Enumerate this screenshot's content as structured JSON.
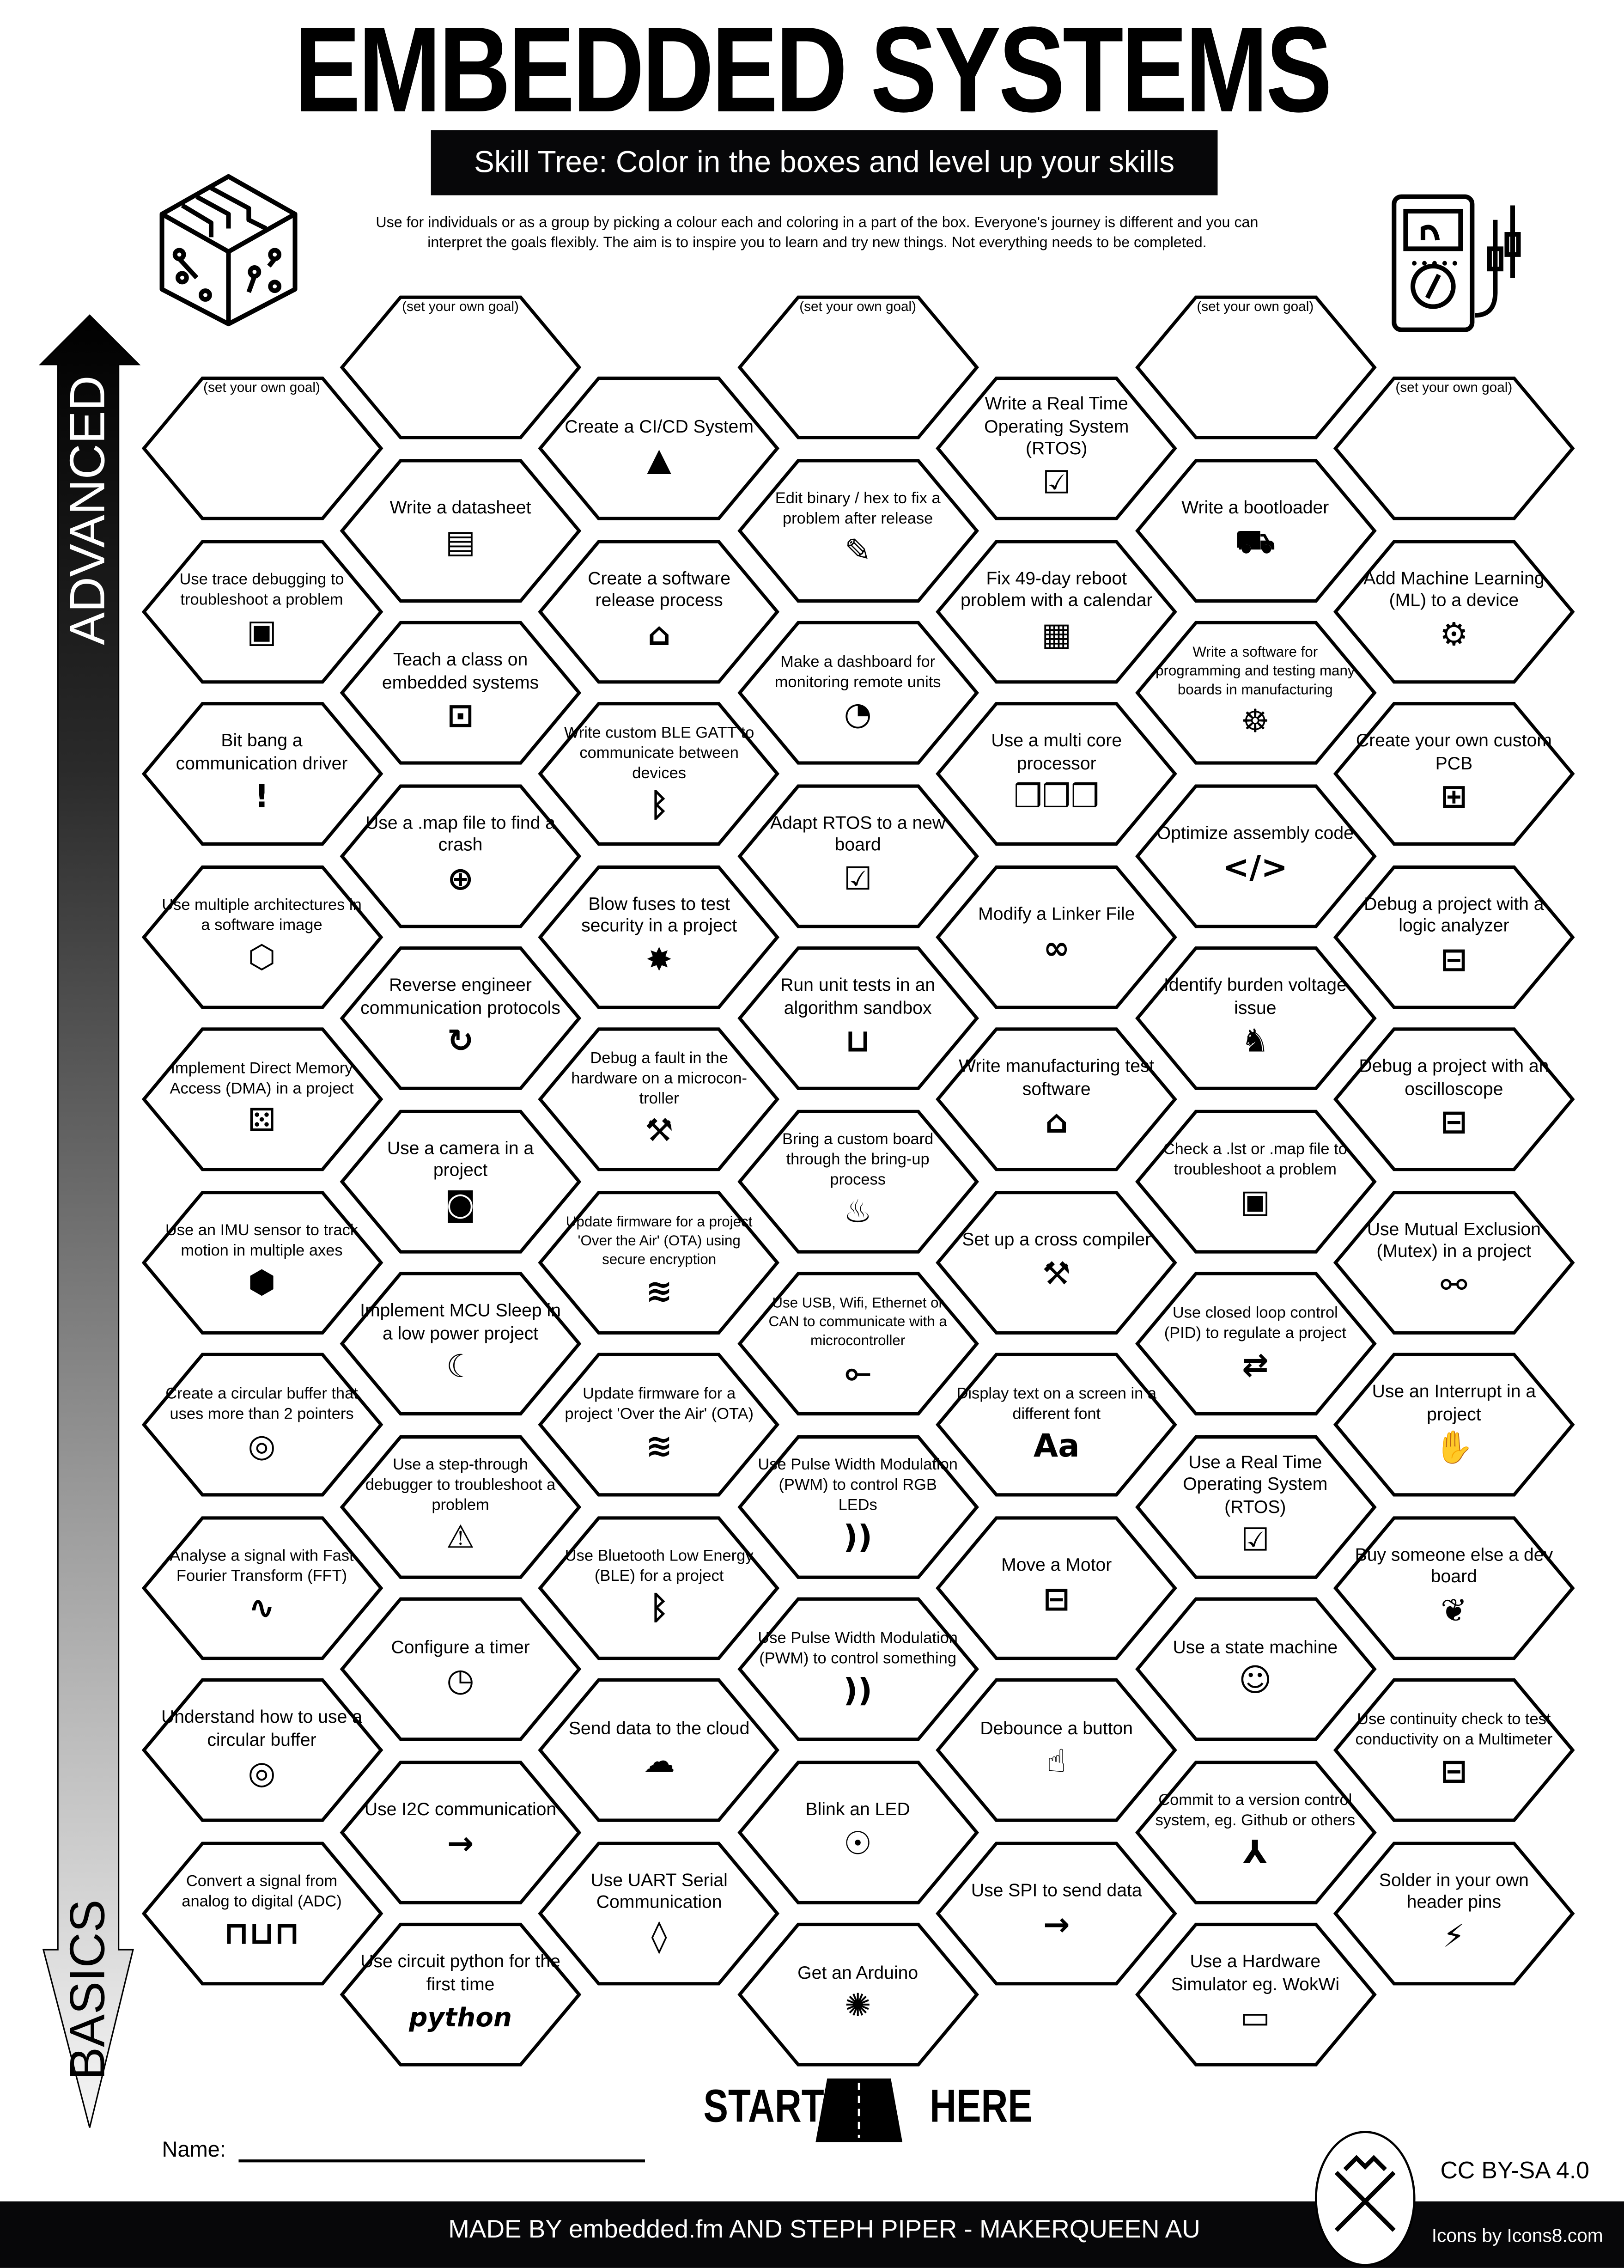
{
  "header": {
    "title": "EMBEDDED SYSTEMS",
    "subtitle": "Skill Tree:  Color in the boxes and level up your skills",
    "description_lines": [
      "Use for individuals or as a group by picking a colour each and coloring in a part of the box.  Everyone's journey is different and you can",
      "interpret the goals flexibly.  The aim is to inspire you to learn and try new things. Not everything needs to be completed."
    ],
    "left_icon": "circuit-cube-icon",
    "right_icon": "multimeter-icon"
  },
  "axis": {
    "top_label": "ADVANCED",
    "bottom_label": "BASICS"
  },
  "goal_placeholder": "(set your own goal)",
  "columns": [
    [
      {
        "label": "",
        "goal": true
      },
      {
        "label": "Use trace debugging to troubleshoot a problem",
        "icon": "monitor-alert"
      },
      {
        "label": "Bit bang a communication driver",
        "icon": "exclamation"
      },
      {
        "label": "Use multiple architectures in a software image",
        "icon": "cube-network"
      },
      {
        "label": "Implement Direct Memory Access (DMA) in a project",
        "icon": "dice-chip"
      },
      {
        "label": "Use an IMU sensor to track motion in multiple axes",
        "icon": "axes-cube"
      },
      {
        "label": "Create a circular buffer that uses more than 2 pointers",
        "icon": "ring"
      },
      {
        "label": "Analyse a signal with Fast Fourier Transform (FFT)",
        "icon": "signal-magnifier"
      },
      {
        "label": "Understand how to use a circular buffer",
        "icon": "ring"
      },
      {
        "label": "Convert a signal from analog to digital (ADC)",
        "icon": "analog-digital"
      }
    ],
    [
      {
        "label": "",
        "goal": true
      },
      {
        "label": "Write a datasheet",
        "icon": "document"
      },
      {
        "label": "Teach a class on embedded systems",
        "icon": "presentation"
      },
      {
        "label": "Use a .map file to find a crash",
        "icon": "globe"
      },
      {
        "label": "Reverse engineer communication protocols",
        "icon": "cycle"
      },
      {
        "label": "Use a camera in a project",
        "icon": "camera"
      },
      {
        "label": "Implement MCU Sleep in a low power project",
        "icon": "bed"
      },
      {
        "label": "Use a step-through debugger to troubleshoot a problem",
        "icon": "monitor-bug"
      },
      {
        "label": "Configure a timer",
        "icon": "stopwatch"
      },
      {
        "label": "Use I2C communication",
        "icon": "bus-arrow"
      },
      {
        "label": "Use circuit python for the first time",
        "icon": "circuitpython-logo",
        "icon_text": "python"
      }
    ],
    [
      {
        "label": "Create a CI/CD System",
        "icon": "rocket-box"
      },
      {
        "label": "Create a software release process",
        "icon": "box-release"
      },
      {
        "label": "Write custom BLE GATT to communicate between devices",
        "icon": "bluetooth"
      },
      {
        "label": "Blow fuses to test security in a project",
        "icon": "explosion"
      },
      {
        "label": "Debug a fault in the hardware on a microcon-troller",
        "icon": "wrench-screwdriver"
      },
      {
        "label": "Update firmware for a project 'Over the Air' (OTA) using secure encryption",
        "icon": "wifi-lock"
      },
      {
        "label": "Update firmware for a project 'Over the Air' (OTA)",
        "icon": "wifi"
      },
      {
        "label": "Use Bluetooth Low Energy (BLE) for a project",
        "icon": "bluetooth"
      },
      {
        "label": "Send data to the cloud",
        "icon": "cloud"
      },
      {
        "label": "Use UART Serial Communication",
        "icon": "drop"
      }
    ],
    [
      {
        "label": "",
        "goal": true
      },
      {
        "label": "Edit binary / hex to fix a problem after release",
        "icon": "pencil"
      },
      {
        "label": "Make a dashboard for monitoring remote units",
        "icon": "gauge"
      },
      {
        "label": "Adapt RTOS to a new board",
        "icon": "monitor-check"
      },
      {
        "label": "Run unit tests in an algorithm sandbox",
        "icon": "sandbox"
      },
      {
        "label": "Bring a custom board through the bring-up process",
        "icon": "cake"
      },
      {
        "label": "Use USB, Wifi, Ethernet or CAN to communicate with a microcontroller",
        "icon": "usb"
      },
      {
        "label": "Use Pulse Width Modulation (PWM) to control RGB LEDs",
        "icon": "signal-waves"
      },
      {
        "label": "Use Pulse Width Modulation (PWM) to control something",
        "icon": "signal-waves"
      },
      {
        "label": "Blink an LED",
        "icon": "led"
      },
      {
        "label": "Get an Arduino",
        "icon": "party-popper"
      }
    ],
    [
      {
        "label": "Write a Real Time Operating System (RTOS)",
        "icon": "monitor-check"
      },
      {
        "label": "Fix 49-day reboot problem with a calendar",
        "icon": "calendar"
      },
      {
        "label": "Use a multi core processor",
        "icon": "cubes"
      },
      {
        "label": "Modify a Linker File",
        "icon": "link"
      },
      {
        "label": "Write manufacturing test software",
        "icon": "box-release"
      },
      {
        "label": "Set up a cross compiler",
        "icon": "wrench-screwdriver"
      },
      {
        "label": "Display text on a screen in a different font",
        "icon": "font",
        "icon_text": "Aa"
      },
      {
        "label": "Move a Motor",
        "icon": "motor"
      },
      {
        "label": "Debounce a button",
        "icon": "finger-press"
      },
      {
        "label": "Use SPI to send data",
        "icon": "bus-arrow"
      }
    ],
    [
      {
        "label": "",
        "goal": true
      },
      {
        "label": "Write a bootloader",
        "icon": "forklift"
      },
      {
        "label": "Write a software for programming and testing many boards in manufacturing",
        "icon": "octopus"
      },
      {
        "label": "Optimize assembly code",
        "icon": "code"
      },
      {
        "label": "Identify burden voltage issue",
        "icon": "donkey"
      },
      {
        "label": "Check a .lst or .map file to troubleshoot a problem",
        "icon": "monitor-alert"
      },
      {
        "label": "Use closed loop control (PID) to regulate a project",
        "icon": "loop-arrows"
      },
      {
        "label": "Use a Real Time Operating System (RTOS)",
        "icon": "monitor-check"
      },
      {
        "label": "Use a state machine",
        "icon": "robot"
      },
      {
        "label": "Commit to a version control system, eg. Github or others",
        "icon": "branch"
      },
      {
        "label": "Use a Hardware Simulator eg. WokWi",
        "icon": "laptop-cube"
      }
    ],
    [
      {
        "label": "",
        "goal": true
      },
      {
        "label": "Add Machine Learning (ML) to a device",
        "icon": "brain-gear"
      },
      {
        "label": "Create your own custom PCB",
        "icon": "circuit-board"
      },
      {
        "label": "Debug a project with a logic analyzer",
        "icon": "multimeter"
      },
      {
        "label": "Debug a project with an oscilloscope",
        "icon": "multimeter"
      },
      {
        "label": "Use Mutual Exclusion (Mutex) in a project",
        "icon": "handshake"
      },
      {
        "label": "Use an Interrupt in a project",
        "icon": "hand-stop"
      },
      {
        "label": "Buy someone else a dev board",
        "icon": "gift-bow"
      },
      {
        "label": "Use continuity check to test conductivity on a Multimeter",
        "icon": "multimeter"
      },
      {
        "label": "Solder in your own header pins",
        "icon": "soldering-iron"
      }
    ]
  ],
  "start": {
    "left": "START",
    "right": "HERE",
    "icon": "road-icon"
  },
  "name_label": "Name:",
  "license": "CC BY-SA 4.0",
  "footer": {
    "credit": "MADE BY embedded.fm AND STEPH PIPER  -  MAKERQUEEN AU",
    "icons_credit": "Icons by Icons8.com",
    "logo_icon": "makerqueen-logo-icon"
  }
}
